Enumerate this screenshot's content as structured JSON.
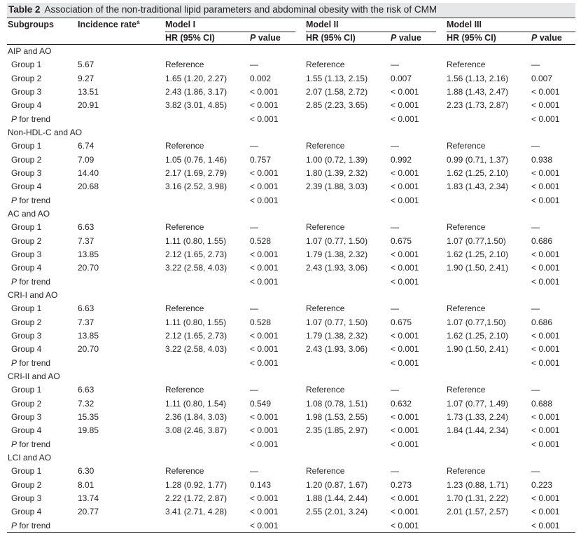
{
  "table": {
    "number": "Table 2",
    "caption": "Association of the non-traditional lipid parameters and abdominal obesity with the risk of CMM",
    "col_subgroups": "Subgroups",
    "col_incidence": "Incidence rate",
    "col_incidence_sup": "a",
    "models": [
      "Model I",
      "Model II",
      "Model III"
    ],
    "hr_label": "HR (95% CI)",
    "p_label_italic": "P",
    "p_label_rest": " value",
    "p_trend_italic": "P",
    "p_trend_rest": " for trend",
    "sections": [
      {
        "title": "AIP and AO",
        "rows": [
          {
            "group": "Group 1",
            "rate": "5.67",
            "vals": [
              "Reference",
              "—",
              "Reference",
              "—",
              "Reference",
              "—"
            ]
          },
          {
            "group": "Group 2",
            "rate": "9.27",
            "vals": [
              "1.65 (1.20, 2.27)",
              "0.002",
              "1.55 (1.13, 2.15)",
              "0.007",
              "1.56 (1.13, 2.16)",
              "0.007"
            ]
          },
          {
            "group": "Group 3",
            "rate": "13.51",
            "vals": [
              "2.43 (1.86, 3.17)",
              "< 0.001",
              "2.07 (1.58, 2.72)",
              "< 0.001",
              "1.88 (1.43, 2.47)",
              "< 0.001"
            ]
          },
          {
            "group": "Group 4",
            "rate": "20.91",
            "vals": [
              "3.82 (3.01, 4.85)",
              "< 0.001",
              "2.85 (2.23, 3.65)",
              "< 0.001",
              "2.23 (1.73, 2.87)",
              "< 0.001"
            ]
          }
        ],
        "trend": [
          "< 0.001",
          "< 0.001",
          "< 0.001"
        ]
      },
      {
        "title": "Non-HDL-C and AO",
        "rows": [
          {
            "group": "Group 1",
            "rate": "6.74",
            "vals": [
              "Reference",
              "—",
              "Reference",
              "—",
              "Reference",
              "—"
            ]
          },
          {
            "group": "Group 2",
            "rate": "7.09",
            "vals": [
              "1.05 (0.76, 1.46)",
              "0.757",
              "1.00 (0.72, 1.39)",
              "0.992",
              "0.99 (0.71, 1.37)",
              "0.938"
            ]
          },
          {
            "group": "Group 3",
            "rate": "14.40",
            "vals": [
              "2.17 (1.69, 2.79)",
              "< 0.001",
              "1.80 (1.39, 2.32)",
              "< 0.001",
              "1.62 (1.25, 2.10)",
              "< 0.001"
            ]
          },
          {
            "group": "Group 4",
            "rate": "20.68",
            "vals": [
              "3.16 (2.52, 3.98)",
              "< 0.001",
              "2.39 (1.88, 3.03)",
              "< 0.001",
              "1.83 (1.43, 2.34)",
              "< 0.001"
            ]
          }
        ],
        "trend": [
          "< 0.001",
          "< 0.001",
          "< 0.001"
        ]
      },
      {
        "title": "AC and AO",
        "rows": [
          {
            "group": "Group 1",
            "rate": "6.63",
            "vals": [
              "Reference",
              "—",
              "Reference",
              "—",
              "Reference",
              "—"
            ]
          },
          {
            "group": "Group 2",
            "rate": "7.37",
            "vals": [
              "1.11 (0.80, 1.55)",
              "0.528",
              "1.07 (0.77, 1.50)",
              "0.675",
              "1.07 (0.77,1.50)",
              "0.686"
            ]
          },
          {
            "group": "Group 3",
            "rate": "13.85",
            "vals": [
              "2.12 (1.65, 2.73)",
              "< 0.001",
              "1.79 (1.38, 2.32)",
              "< 0.001",
              "1.62 (1.25, 2.10)",
              "< 0.001"
            ]
          },
          {
            "group": "Group 4",
            "rate": "20.70",
            "vals": [
              "3.22 (2.58, 4.03)",
              "< 0.001",
              "2.43 (1.93, 3.06)",
              "< 0.001",
              "1.90 (1.50, 2.41)",
              "< 0.001"
            ]
          }
        ],
        "trend": [
          "< 0.001",
          "< 0.001",
          "< 0.001"
        ]
      },
      {
        "title": "CRI-I and AO",
        "rows": [
          {
            "group": "Group 1",
            "rate": "6.63",
            "vals": [
              "Reference",
              "—",
              "Reference",
              "—",
              "Reference",
              "—"
            ]
          },
          {
            "group": "Group 2",
            "rate": "7.37",
            "vals": [
              "1.11 (0.80, 1.55)",
              "0.528",
              "1.07 (0.77, 1.50)",
              "0.675",
              "1.07 (0.77,1.50)",
              "0.686"
            ]
          },
          {
            "group": "Group 3",
            "rate": "13.85",
            "vals": [
              "2.12 (1.65, 2.73)",
              "< 0.001",
              "1.79 (1.38, 2.32)",
              "< 0.001",
              "1.62 (1.25, 2.10)",
              "< 0.001"
            ]
          },
          {
            "group": "Group 4",
            "rate": "20.70",
            "vals": [
              "3.22 (2.58, 4.03)",
              "< 0.001",
              "2.43 (1.93, 3.06)",
              "< 0.001",
              "1.90 (1.50, 2.41)",
              "< 0.001"
            ]
          }
        ],
        "trend": [
          "< 0.001",
          "< 0.001",
          "< 0.001"
        ]
      },
      {
        "title": "CRI-II and AO",
        "rows": [
          {
            "group": "Group 1",
            "rate": "6.63",
            "vals": [
              "Reference",
              "—",
              "Reference",
              "—",
              "Reference",
              "—"
            ]
          },
          {
            "group": "Group 2",
            "rate": "7.32",
            "vals": [
              "1.11 (0.80, 1.54)",
              "0.549",
              "1.08 (0.78, 1.51)",
              "0.632",
              "1.07 (0.77, 1.49)",
              "0.688"
            ]
          },
          {
            "group": "Group 3",
            "rate": "15.35",
            "vals": [
              "2.36 (1.84, 3.03)",
              "< 0.001",
              "1.98 (1.53, 2.55)",
              "< 0.001",
              "1.73 (1.33, 2.24)",
              "< 0.001"
            ]
          },
          {
            "group": "Group 4",
            "rate": "19.85",
            "vals": [
              "3.08 (2.46, 3.87)",
              "< 0.001",
              "2.35 (1.85, 2.97)",
              "< 0.001",
              "1.84 (1.44, 2.34)",
              "< 0.001"
            ]
          }
        ],
        "trend": [
          "< 0.001",
          "< 0.001",
          "< 0.001"
        ]
      },
      {
        "title": "LCI and AO",
        "rows": [
          {
            "group": "Group 1",
            "rate": "6.30",
            "vals": [
              "Reference",
              "—",
              "Reference",
              "—",
              "Reference",
              "—"
            ]
          },
          {
            "group": "Group 2",
            "rate": "8.01",
            "vals": [
              "1.28 (0.92, 1.77)",
              "0.143",
              "1.20 (0.87, 1.67)",
              "0.273",
              "1.23 (0.88, 1.71)",
              "0.223"
            ]
          },
          {
            "group": "Group 3",
            "rate": "13.74",
            "vals": [
              "2.22 (1.72, 2.87)",
              "< 0.001",
              "1.88 (1.44, 2.44)",
              "< 0.001",
              "1.70 (1.31, 2.22)",
              "< 0.001"
            ]
          },
          {
            "group": "Group 4",
            "rate": "20.77",
            "vals": [
              "3.41 (2.71, 4.28)",
              "< 0.001",
              "2.55 (2.01, 3.24)",
              "< 0.001",
              "2.01 (1.57, 2.57)",
              "< 0.001"
            ]
          }
        ],
        "trend": [
          "< 0.001",
          "< 0.001",
          "< 0.001"
        ]
      }
    ]
  }
}
